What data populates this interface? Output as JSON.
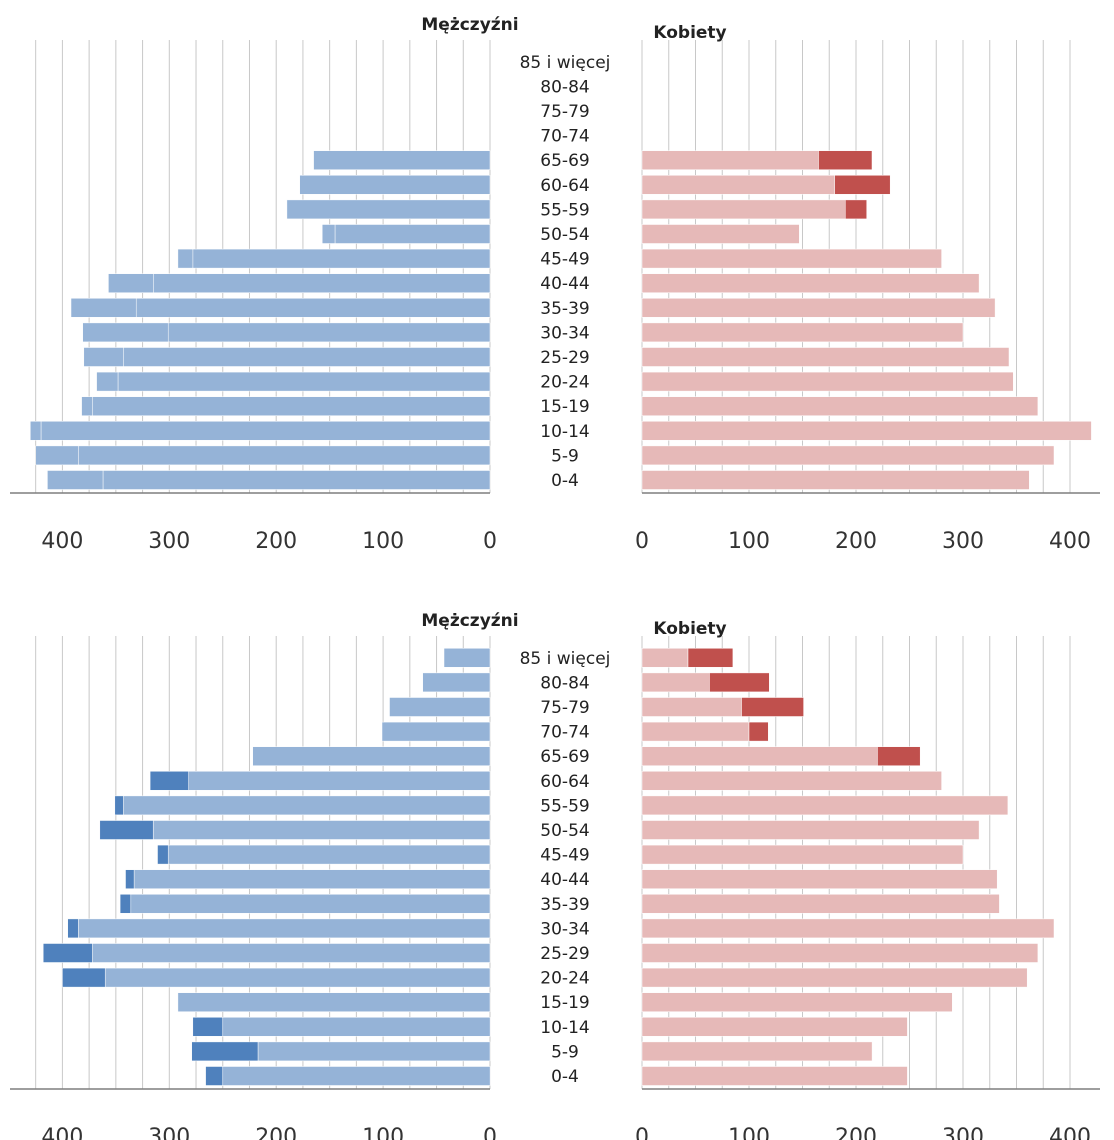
{
  "chart_data": [
    {
      "type": "bar",
      "orientation": "horizontal",
      "layout": "population-pyramid",
      "age_groups": [
        "0-4",
        "5-9",
        "10-14",
        "15-19",
        "20-24",
        "25-29",
        "30-34",
        "35-39",
        "40-44",
        "45-49",
        "50-54",
        "55-59",
        "60-64",
        "65-69",
        "70-74",
        "75-79",
        "80-84",
        "85 i więcej"
      ],
      "male": {
        "title": "Mężczyźni",
        "xlim": [
          0,
          450
        ],
        "ticks": [
          0,
          100,
          200,
          300,
          400
        ],
        "tick_labels": [
          "0",
          "100",
          "200",
          "300",
          "400"
        ],
        "series": [
          {
            "values": [
              362,
              385,
              420,
              372,
              348,
              343,
              301,
              331,
              315,
              278,
              145,
              0,
              0,
              0,
              0,
              0,
              0,
              0
            ],
            "color": "#95b3d7"
          },
          {
            "values": [
              52,
              40,
              10,
              10,
              20,
              37,
              80,
              61,
              42,
              14,
              12,
              190,
              178,
              165,
              0,
              0,
              0,
              0
            ],
            "color": "#95b3d7"
          },
          {
            "values": [
              0,
              0,
              0,
              0,
              0,
              0,
              0,
              0,
              0,
              0,
              0,
              0,
              0,
              0,
              0,
              0,
              0,
              0
            ],
            "color": "#4f81bd"
          }
        ]
      },
      "female": {
        "title": "Kobiety",
        "xlim": [
          0,
          420
        ],
        "ticks": [
          0,
          100,
          200,
          300,
          400
        ],
        "tick_labels": [
          "0",
          "100",
          "200",
          "300",
          "400"
        ],
        "series": [
          {
            "values": [
              362,
              385,
              420,
              370,
              347,
              343,
              300,
              330,
              315,
              280,
              147,
              190,
              180,
              165,
              0,
              0,
              0,
              0
            ],
            "color": "#e6b9b8"
          },
          {
            "values": [
              0,
              0,
              0,
              0,
              0,
              0,
              0,
              0,
              0,
              0,
              0,
              20,
              52,
              50,
              0,
              0,
              0,
              0
            ],
            "color": "#c0504d"
          }
        ]
      }
    },
    {
      "type": "bar",
      "orientation": "horizontal",
      "layout": "population-pyramid",
      "age_groups": [
        "0-4",
        "5-9",
        "10-14",
        "15-19",
        "20-24",
        "25-29",
        "30-34",
        "35-39",
        "40-44",
        "45-49",
        "50-54",
        "55-59",
        "60-64",
        "65-69",
        "70-74",
        "75-79",
        "80-84",
        "85 i więcej"
      ],
      "male": {
        "title": "Mężczyźni",
        "xlim": [
          0,
          450
        ],
        "ticks": [
          0,
          100,
          200,
          300,
          400
        ],
        "tick_labels": [
          "0",
          "100",
          "200",
          "300",
          "400"
        ],
        "series": [
          {
            "values": [
              250,
              217,
              250,
              292,
              360,
              372,
              385,
              336,
              333,
              301,
              315,
              343,
              282,
              222,
              101,
              94,
              63,
              43
            ],
            "color": "#95b3d7"
          },
          {
            "values": [
              16,
              62,
              28,
              0,
              40,
              46,
              10,
              10,
              8,
              10,
              50,
              8,
              36,
              0,
              0,
              0,
              0,
              0
            ],
            "color": "#4f81bd"
          }
        ]
      },
      "female": {
        "title": "Kobiety",
        "xlim": [
          0,
          420
        ],
        "ticks": [
          0,
          100,
          200,
          300,
          400
        ],
        "tick_labels": [
          "0",
          "100",
          "200",
          "300",
          "400"
        ],
        "series": [
          {
            "values": [
              248,
              215,
              248,
              290,
              360,
              370,
              385,
              334,
              332,
              300,
              315,
              342,
              280,
              220,
              100,
              93,
              63,
              43
            ],
            "color": "#e6b9b8"
          },
          {
            "values": [
              0,
              0,
              0,
              0,
              0,
              0,
              0,
              0,
              0,
              0,
              0,
              0,
              0,
              40,
              18,
              58,
              56,
              42
            ],
            "color": "#c0504d"
          }
        ]
      }
    }
  ]
}
